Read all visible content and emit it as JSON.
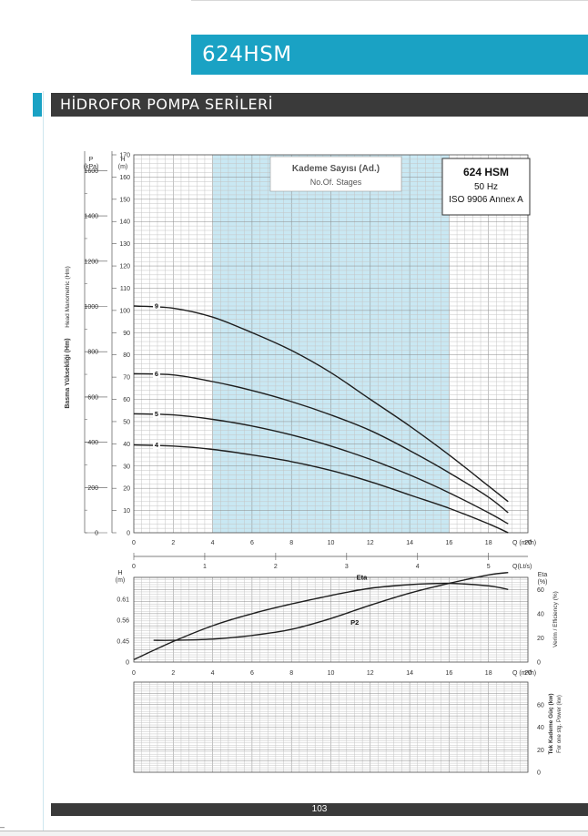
{
  "page": {
    "model_title": "624HSM",
    "section_title": "HİDROFOR POMPA SERİLERİ",
    "page_number": "103",
    "accent_color": "#1aa2c4",
    "bar_color": "#3a3a3a",
    "band_color": "#c9e8f3"
  },
  "chart_data": [
    {
      "type": "line",
      "title": "624 HSM",
      "subtitle_lines": [
        "50 Hz",
        "ISO 9906 Annex A"
      ],
      "legend_title": "Kademe Sayısı (Ad.)",
      "legend_subtitle": "No.Of. Stages",
      "ylabel_main": "Basma Yüksekliği (Hm)",
      "ylabel_alt": "Head Manometric (Hm)",
      "ylabel_unit": "H",
      "ylabel_unit_sub": "(m)",
      "pressure_label": "P",
      "pressure_unit": "(kPa)",
      "xlabel": "Q (m³/h)",
      "xlabel2": "Q(Lt/s)",
      "xlim": [
        0,
        20
      ],
      "ylim": [
        0,
        170
      ],
      "pressure_lim": [
        0,
        1670
      ],
      "xticks": [
        "0",
        "2",
        "4",
        "6",
        "8",
        "10",
        "12",
        "14",
        "16",
        "18",
        "20"
      ],
      "yticks": [
        "0",
        "10",
        "20",
        "30",
        "40",
        "50",
        "60",
        "70",
        "80",
        "90",
        "100",
        "110",
        "120",
        "130",
        "140",
        "150",
        "160",
        "170"
      ],
      "pressure_ticks": [
        "0",
        "200",
        "400",
        "600",
        "800",
        "1000",
        "1200",
        "1400",
        "1600"
      ],
      "lps_ticks": [
        "0",
        "1",
        "2",
        "3",
        "4",
        "5"
      ],
      "operating_range": [
        4,
        16
      ],
      "grid": true,
      "series": [
        {
          "name": "9",
          "x": [
            0,
            2,
            4,
            6,
            8,
            10,
            12,
            14,
            16,
            18,
            19
          ],
          "y": [
            102,
            101,
            97,
            90,
            82,
            72,
            60,
            48,
            35,
            21,
            14
          ]
        },
        {
          "name": "6",
          "x": [
            0,
            2,
            4,
            6,
            8,
            10,
            12,
            14,
            16,
            18,
            19
          ],
          "y": [
            71.5,
            71,
            68,
            64,
            59,
            53,
            46,
            37,
            27,
            16,
            9
          ]
        },
        {
          "name": "5",
          "x": [
            0,
            2,
            4,
            6,
            8,
            10,
            12,
            14,
            16,
            18,
            19
          ],
          "y": [
            53.5,
            53,
            51,
            48,
            44,
            39,
            33,
            26,
            18,
            9,
            4
          ]
        },
        {
          "name": "4",
          "x": [
            0,
            2,
            4,
            6,
            8,
            10,
            12,
            14,
            16,
            18,
            19
          ],
          "y": [
            39.5,
            39,
            37.5,
            35,
            32,
            28,
            23,
            17,
            11,
            4,
            0
          ]
        }
      ]
    },
    {
      "type": "line",
      "ylabel_left": "H",
      "ylabel_left_unit": "(m)",
      "ylabel_right": "Eta",
      "ylabel_right_unit": "(%)",
      "ylabel_right_text": "Verim / Efficiency (%)",
      "xlabel": "Q (m³/h)",
      "xlim": [
        0,
        20
      ],
      "left_ticks": [
        "0",
        "0.45",
        "0.56",
        "0.61"
      ],
      "right_ticks": [
        "0",
        "20",
        "40",
        "60"
      ],
      "xticks": [
        "0",
        "2",
        "4",
        "6",
        "8",
        "10",
        "12",
        "14",
        "16",
        "18",
        "20"
      ],
      "eta_lim": [
        0,
        70
      ],
      "grid": true,
      "series": [
        {
          "name": "Eta",
          "x": [
            0,
            2,
            4,
            6,
            8,
            10,
            12,
            14,
            16,
            18,
            19
          ],
          "y": [
            2,
            17,
            30,
            40,
            48,
            55,
            61,
            64,
            65,
            63,
            60
          ]
        },
        {
          "name": "P2",
          "x": [
            1,
            2,
            4,
            6,
            8,
            10,
            12,
            14,
            16,
            18,
            19
          ],
          "y": [
            18,
            18,
            19,
            22,
            27,
            36,
            47,
            57,
            65,
            72,
            74
          ]
        }
      ]
    },
    {
      "type": "line",
      "ylabel_right": "Tek Kademe Güç (kw)",
      "ylabel_right_sub": "For one stg. Power (kw)",
      "right_ticks": [
        "0",
        "20",
        "40",
        "60"
      ],
      "grid": true,
      "series": []
    }
  ]
}
